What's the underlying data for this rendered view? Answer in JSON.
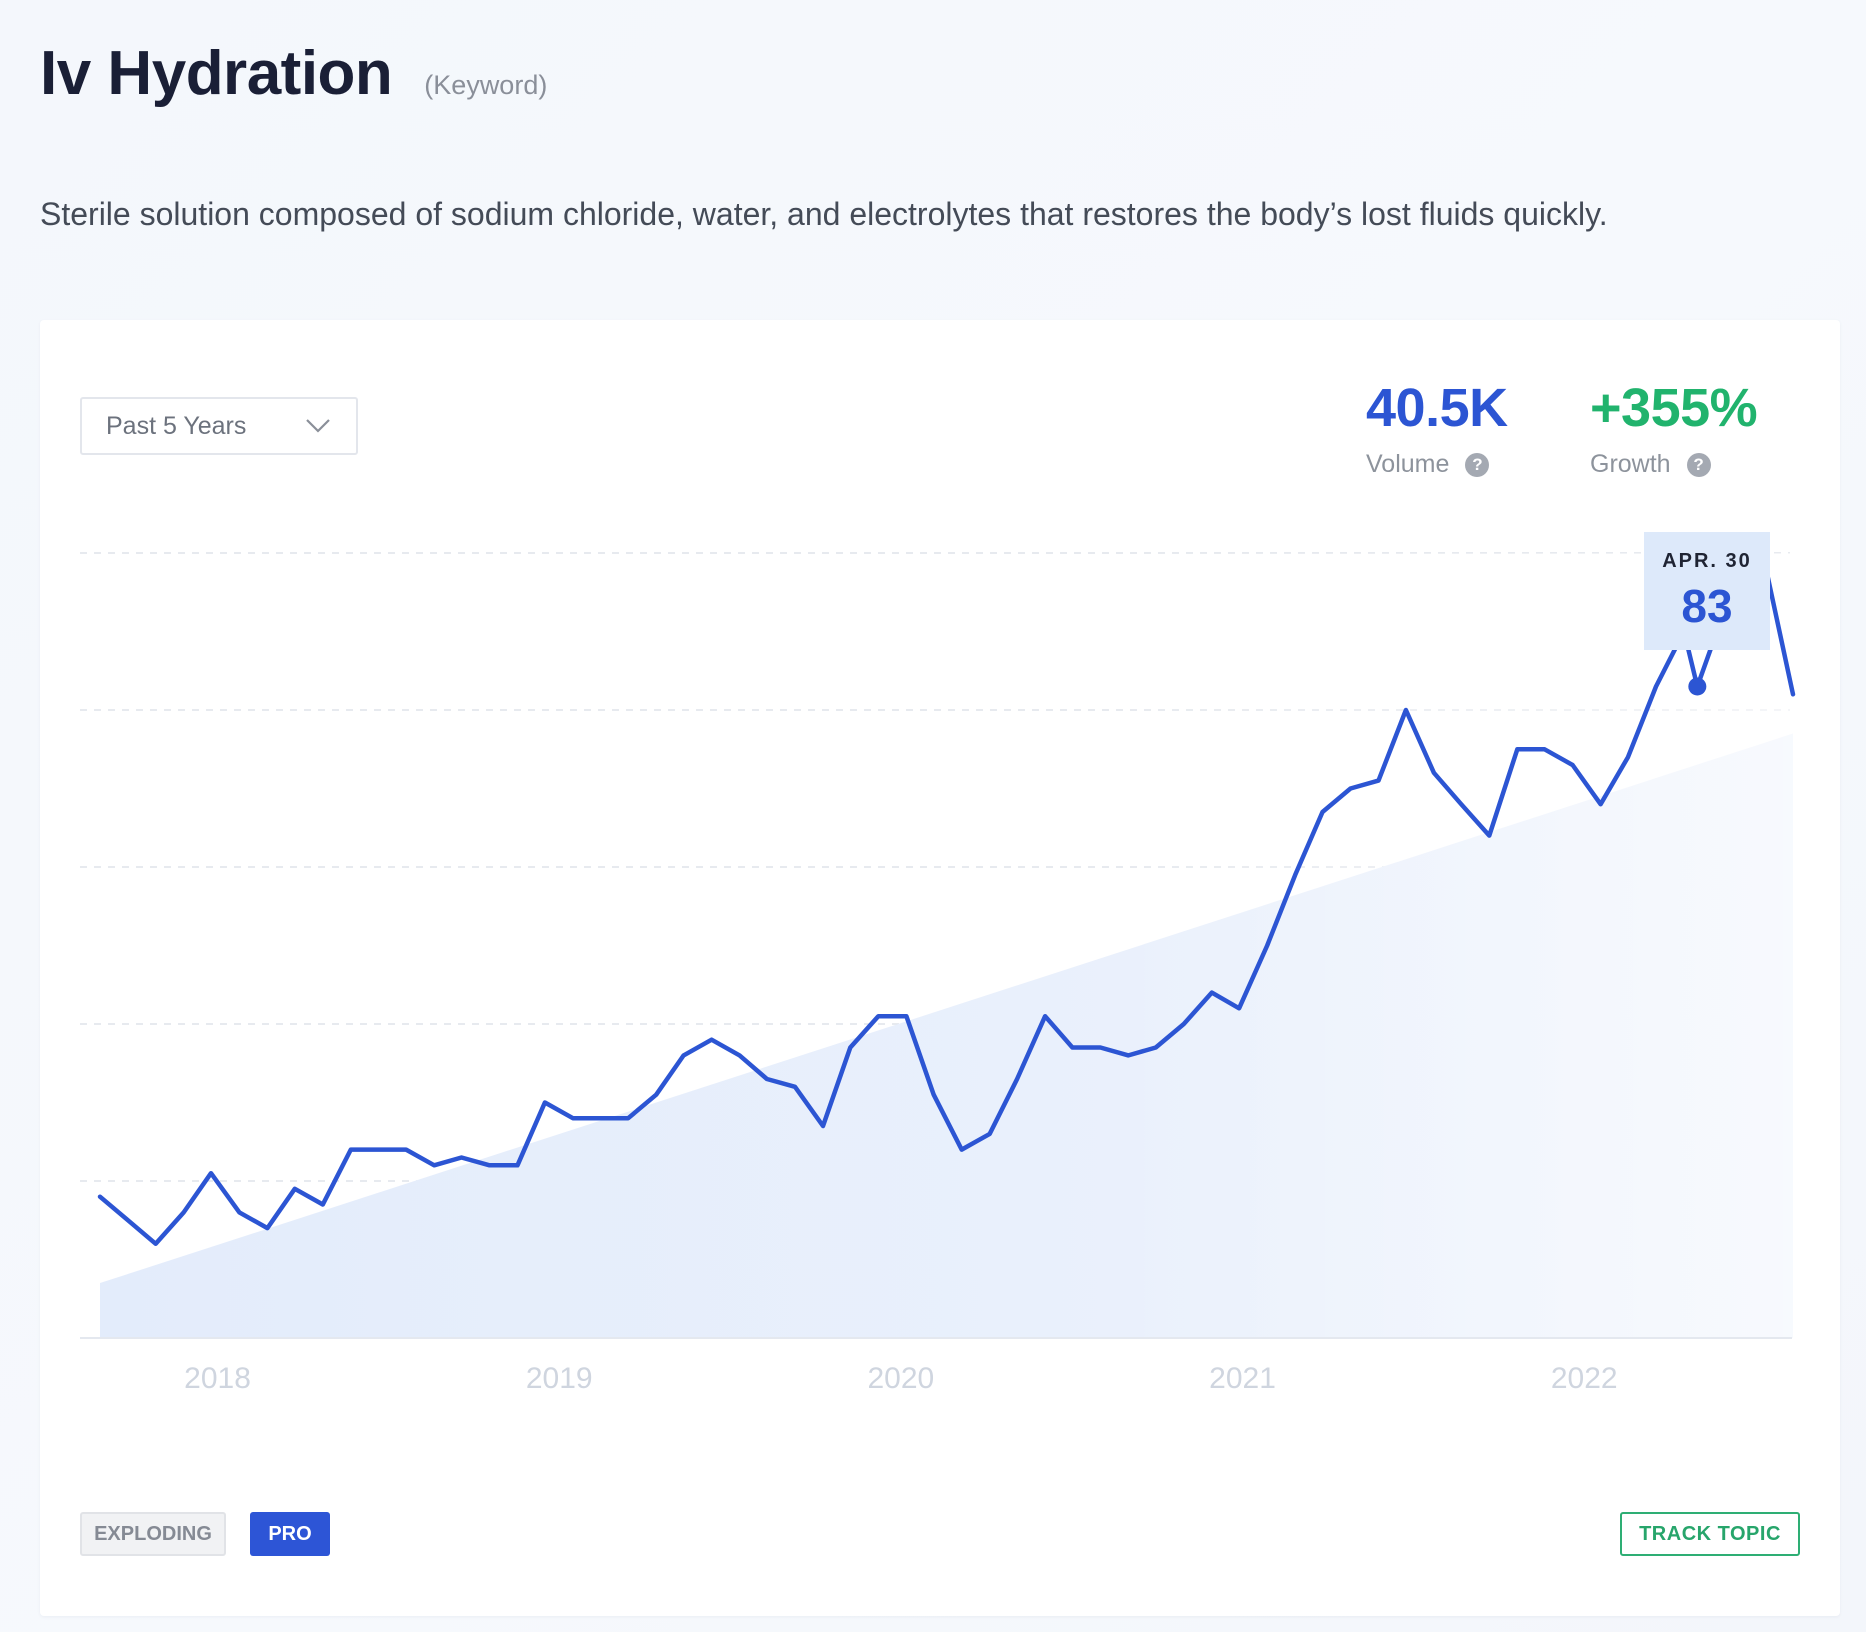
{
  "header": {
    "title": "Iv Hydration",
    "kind": "(Keyword)"
  },
  "description": "Sterile solution composed of sodium chloride, water, and electrolytes that restores the body’s lost fluids quickly.",
  "controls": {
    "range_label": "Past 5 Years"
  },
  "metrics": {
    "volume": {
      "value": "40.5K",
      "label": "Volume"
    },
    "growth": {
      "value": "+355%",
      "label": "Growth"
    }
  },
  "tooltip": {
    "date": "APR. 30",
    "value": "83"
  },
  "badges": {
    "exploding": "EXPLODING",
    "pro": "PRO"
  },
  "actions": {
    "track": "TRACK TOPIC"
  },
  "colors": {
    "line": "#2c55d3",
    "growth": "#21b36d",
    "accent": "#2d55d6",
    "track": "#2eae74"
  },
  "icons": {
    "dropdown": "chevron-down-icon",
    "help": "question-circle-icon"
  },
  "chart_data": {
    "type": "line",
    "x_tick_labels": [
      "2018",
      "2019",
      "2020",
      "2021",
      "2022"
    ],
    "x_range": [
      2017.656,
      2022.611
    ],
    "y_range": [
      0,
      100
    ],
    "grid": "horizontal-dashed",
    "highlight": {
      "x": 2022.331,
      "y": 83
    },
    "trend_start": 7,
    "trend_end": 77,
    "series": [
      {
        "x": [
          2017.656,
          2017.738,
          2017.819,
          2017.901,
          2017.981,
          2018.064,
          2018.146,
          2018.226,
          2018.308,
          2018.39,
          2018.47,
          2018.552,
          2018.634,
          2018.714,
          2018.796,
          2018.878,
          2018.958,
          2019.04,
          2019.122,
          2019.202,
          2019.284,
          2019.364,
          2019.446,
          2019.528,
          2019.608,
          2019.69,
          2019.772,
          2019.852,
          2019.934,
          2020.016,
          2020.096,
          2020.178,
          2020.26,
          2020.34,
          2020.422,
          2020.502,
          2020.584,
          2020.666,
          2020.746,
          2020.828,
          2020.91,
          2020.99,
          2021.072,
          2021.154,
          2021.234,
          2021.316,
          2021.398,
          2021.478,
          2021.56,
          2021.64,
          2021.722,
          2021.804,
          2021.884,
          2021.966,
          2022.048,
          2022.128,
          2022.21,
          2022.292,
          2022.331,
          2022.372,
          2022.46,
          2022.532,
          2022.611
        ],
        "y": [
          18,
          15,
          12,
          16,
          21,
          16,
          14,
          19,
          17,
          24,
          24,
          24,
          22,
          23,
          22,
          22,
          30,
          28,
          28,
          28,
          31,
          36,
          38,
          36,
          33,
          32,
          27,
          37,
          41,
          41,
          31,
          24,
          26,
          33,
          41,
          37,
          37,
          36,
          37,
          40,
          44,
          42,
          50,
          59,
          67,
          70,
          71,
          80,
          72,
          68,
          64,
          75,
          75,
          73,
          68,
          74,
          83,
          90,
          83,
          88,
          95,
          98,
          82
        ]
      }
    ]
  }
}
